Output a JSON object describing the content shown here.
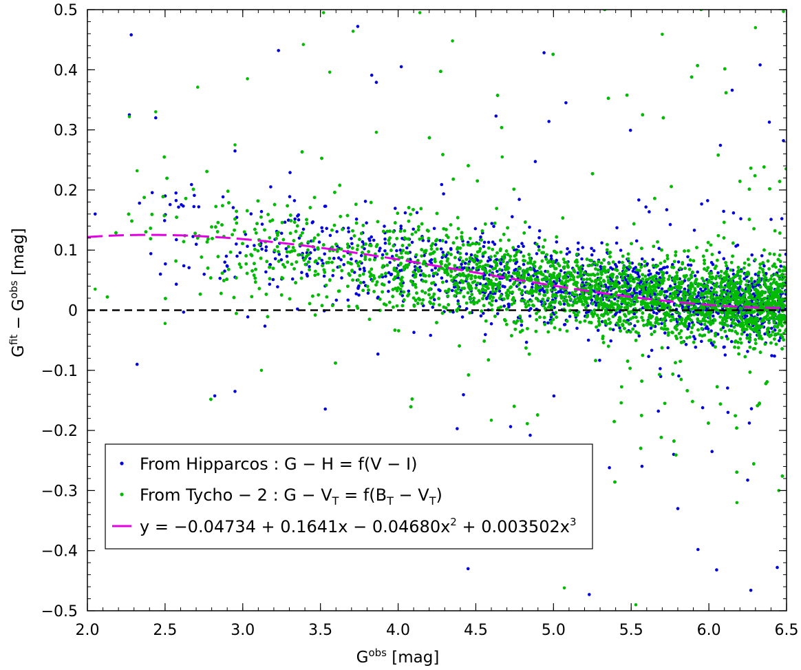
{
  "chart_data": {
    "type": "scatter",
    "xlabel": {
      "main": "G",
      "sup": "obs",
      "unit": " [mag]"
    },
    "ylabel": {
      "g1": "G",
      "sup1": "fit",
      "minus": " − ",
      "g2": "G",
      "sup2": "obs",
      "unit": " [mag]"
    },
    "xlim": [
      2.0,
      6.5
    ],
    "ylim": [
      -0.5,
      0.5
    ],
    "xticks": [
      2.0,
      2.5,
      3.0,
      3.5,
      4.0,
      4.5,
      5.0,
      5.5,
      6.0,
      6.5
    ],
    "xtick_labels": [
      "2.0",
      "2.5",
      "3.0",
      "3.5",
      "4.0",
      "4.5",
      "5.0",
      "5.5",
      "6.0",
      "6.5"
    ],
    "yticks": [
      0.5,
      0.4,
      0.3,
      0.2,
      0.1,
      0,
      -0.1,
      -0.2,
      -0.3,
      -0.4,
      -0.5
    ],
    "ytick_labels": [
      "0.5",
      "0.4",
      "0.3",
      "0.2",
      "0.1",
      "0",
      "−0.1",
      "−0.2",
      "−0.3",
      "−0.4",
      "−0.5"
    ],
    "reference_line": {
      "y": 0,
      "style": "dashed",
      "color": "#000000"
    },
    "series": [
      {
        "name": "From Hipparcos : G − H = f(V − I)",
        "kind": "scatter",
        "color": "#0000dd",
        "approx_count": 2600,
        "x_range": [
          2.0,
          6.5
        ],
        "points_sample": [
          [
            2.05,
            0.16
          ],
          [
            2.27,
            0.325
          ],
          [
            2.32,
            -0.09
          ],
          [
            2.44,
            0.32
          ],
          [
            2.47,
            0.06
          ],
          [
            2.57,
            0.195
          ],
          [
            2.95,
            -0.135
          ],
          [
            2.95,
            0.265
          ],
          [
            3.23,
            0.432
          ],
          [
            3.25,
            0.128
          ],
          [
            3.54,
            0.136
          ],
          [
            3.74,
            0.472
          ],
          [
            3.83,
            0.391
          ],
          [
            3.86,
            0.379
          ],
          [
            3.87,
            -0.073
          ],
          [
            4.02,
            0.405
          ],
          [
            4.28,
            0.209
          ],
          [
            4.38,
            -0.197
          ],
          [
            4.45,
            -0.43
          ],
          [
            4.63,
            0.323
          ],
          [
            4.85,
            -0.208
          ],
          [
            5.08,
            0.345
          ],
          [
            5.23,
            -0.473
          ],
          [
            5.36,
            -0.262
          ],
          [
            5.8,
            -0.33
          ],
          [
            5.93,
            -0.398
          ],
          [
            6.05,
            -0.432
          ],
          [
            6.15,
            0.366
          ],
          [
            6.27,
            -0.466
          ],
          [
            6.33,
            0.408
          ],
          [
            6.44,
            -0.428
          ],
          [
            6.48,
            0.282
          ]
        ]
      },
      {
        "name": "From Tycho − 2 : G − V_T = f(B_T − V_T)",
        "kind": "scatter",
        "color": "#00bb00",
        "approx_count": 9000,
        "x_range": [
          2.0,
          6.5
        ],
        "points_sample": [
          [
            2.05,
            0.035
          ],
          [
            2.27,
            0.322
          ],
          [
            2.32,
            0.232
          ],
          [
            2.44,
            0.33
          ],
          [
            2.5,
            -0.022
          ],
          [
            2.71,
            0.371
          ],
          [
            2.95,
            0.275
          ],
          [
            3.03,
            0.385
          ],
          [
            3.12,
            -0.1
          ],
          [
            3.39,
            0.442
          ],
          [
            3.52,
            0.495
          ],
          [
            3.56,
            0.396
          ],
          [
            3.71,
            0.464
          ],
          [
            3.86,
            0.296
          ],
          [
            4.14,
            0.495
          ],
          [
            4.35,
            0.448
          ],
          [
            4.6,
            -0.183
          ],
          [
            4.67,
            0.255
          ],
          [
            5.07,
            -0.462
          ],
          [
            5.33,
            0.5
          ],
          [
            5.53,
            -0.49
          ],
          [
            5.7,
            0.459
          ],
          [
            5.95,
            0.5
          ],
          [
            6.18,
            -0.32
          ],
          [
            6.3,
            0.47
          ],
          [
            6.45,
            -0.3
          ],
          [
            6.48,
            0.497
          ]
        ]
      },
      {
        "name": "y = −0.04734 + 0.1641x − 0.04680x^2 + 0.003502x^3",
        "kind": "line",
        "style": "dashed",
        "color": "#e000e0",
        "coefficients": [
          -0.04734,
          0.1641,
          -0.0468,
          0.003502
        ]
      }
    ],
    "legend": {
      "placement": "lower-left",
      "entries": [
        {
          "text": "From Hipparcos :  G − H = f(V − I)"
        },
        {
          "text_a": "From Tycho − 2 :  G − V",
          "sub_a": "T",
          "text_b": " = f(B",
          "sub_b": "T",
          "text_c": " − V",
          "sub_c": "T",
          "text_d": ")"
        },
        {
          "text_a": "y = −0.04734 + 0.1641x − 0.04680x",
          "sup_a": "2",
          "text_b": " + 0.003502x",
          "sup_b": "3"
        }
      ]
    }
  }
}
